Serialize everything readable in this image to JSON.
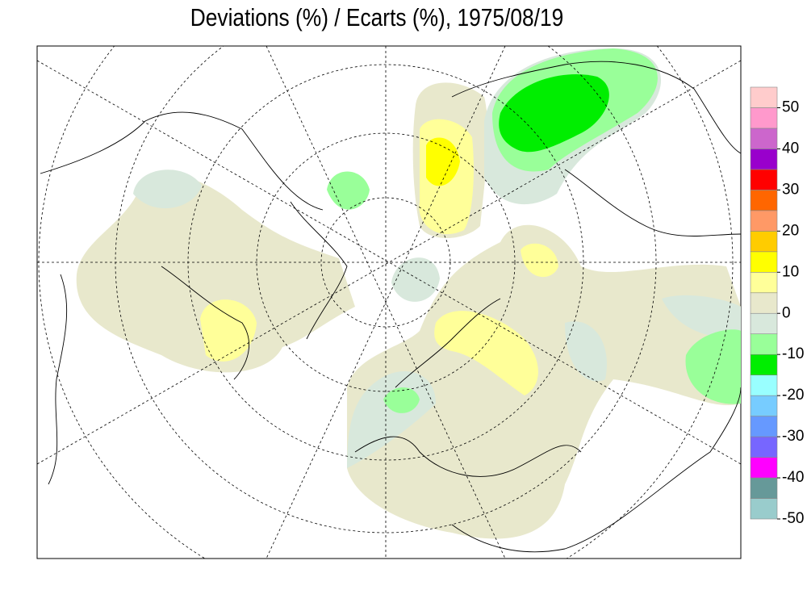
{
  "chart_data": {
    "type": "colorbar",
    "title": "Deviations (%) / Ecarts (%), 1975/08/19",
    "colors": [
      "#99cccc",
      "#669999",
      "#ff00ff",
      "#7766ff",
      "#6699ff",
      "#77ccff",
      "#99ffff",
      "#00ee00",
      "#99ff99",
      "#d8e8dc",
      "#e8e8cc",
      "#ffff99",
      "#ffff00",
      "#ffcc00",
      "#ff9966",
      "#ff6600",
      "#ff0000",
      "#9900cc",
      "#cc66cc",
      "#ff99cc",
      "#ffcccc"
    ],
    "ylim": [
      -50,
      55
    ],
    "yticks": [
      50,
      40,
      30,
      20,
      10,
      0,
      -10,
      -20,
      -30,
      -40,
      -50
    ]
  }
}
